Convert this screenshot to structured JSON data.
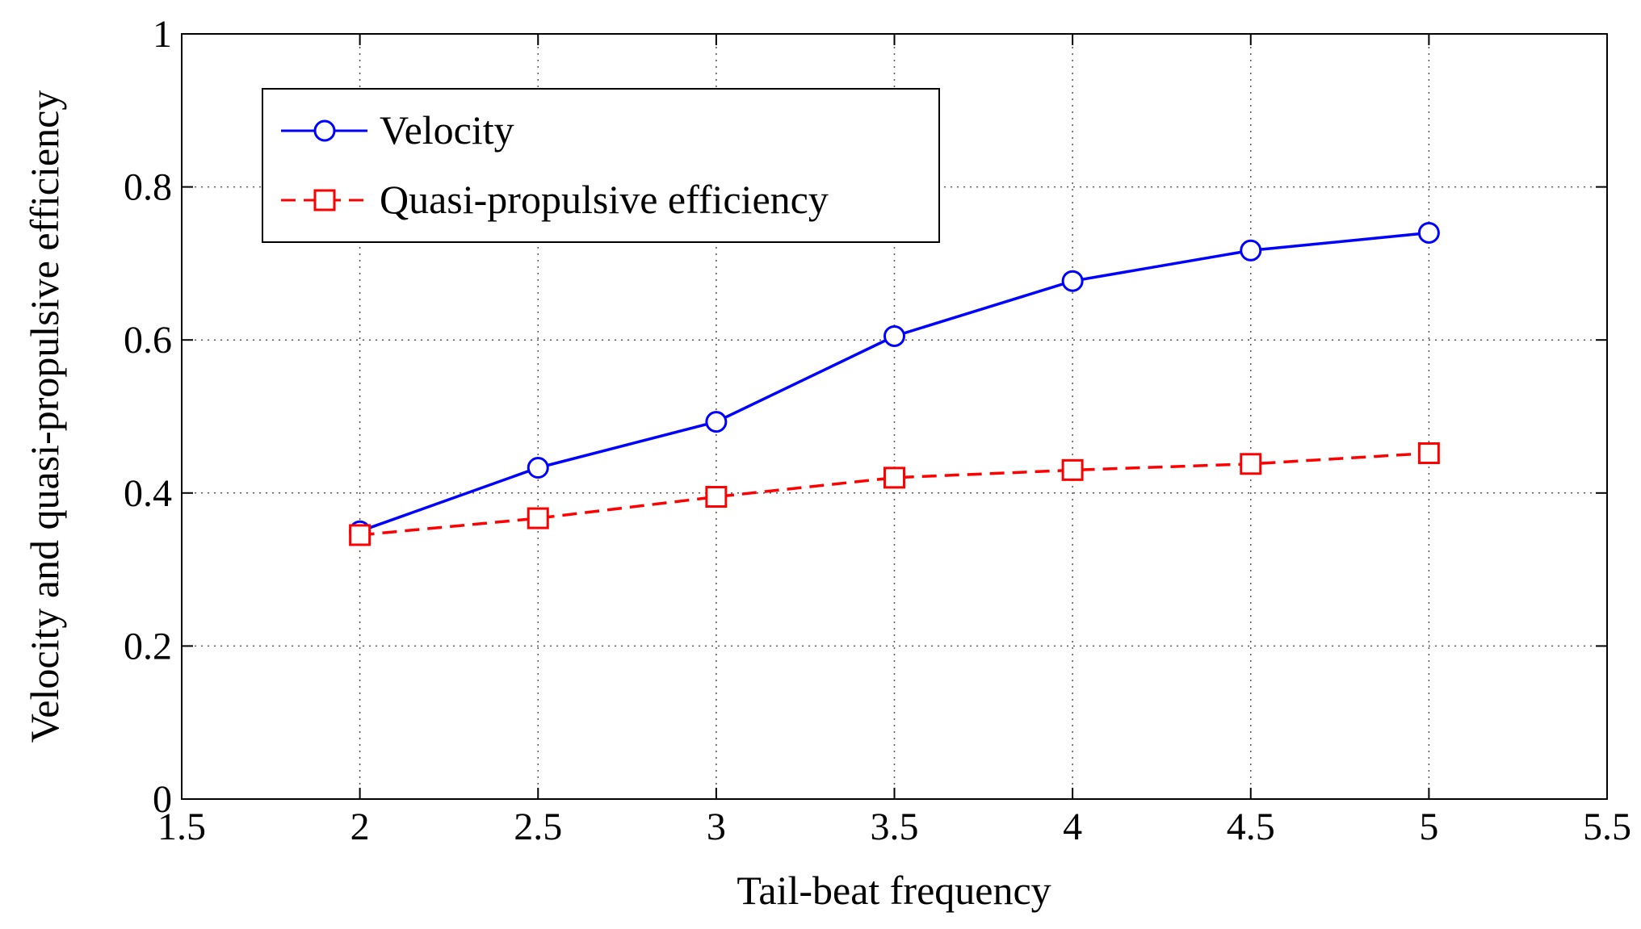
{
  "chart_data": {
    "type": "line",
    "xlabel": "Tail-beat frequency",
    "ylabel": "Velocity and quasi-propulsive efficiency",
    "xlim": [
      1.5,
      5.5
    ],
    "ylim": [
      0,
      1
    ],
    "x_ticks": [
      "1.5",
      "2",
      "2.5",
      "3",
      "3.5",
      "4",
      "4.5",
      "5",
      "5.5"
    ],
    "y_ticks": [
      "0",
      "0.2",
      "0.4",
      "0.6",
      "0.8",
      "1"
    ],
    "grid": true,
    "legend_position": "top-left",
    "x": [
      2,
      2.5,
      3,
      3.5,
      4,
      4.5,
      5
    ],
    "series": [
      {
        "name": "Velocity",
        "values": [
          0.35,
          0.433,
          0.493,
          0.605,
          0.677,
          0.717,
          0.74
        ],
        "color": "#0000ff",
        "marker": "circle",
        "line_style": "solid"
      },
      {
        "name": "Quasi-propulsive efficiency",
        "values": [
          0.345,
          0.367,
          0.395,
          0.42,
          0.43,
          0.438,
          0.452
        ],
        "color": "#ff0000",
        "marker": "square",
        "line_style": "dashed"
      }
    ]
  }
}
